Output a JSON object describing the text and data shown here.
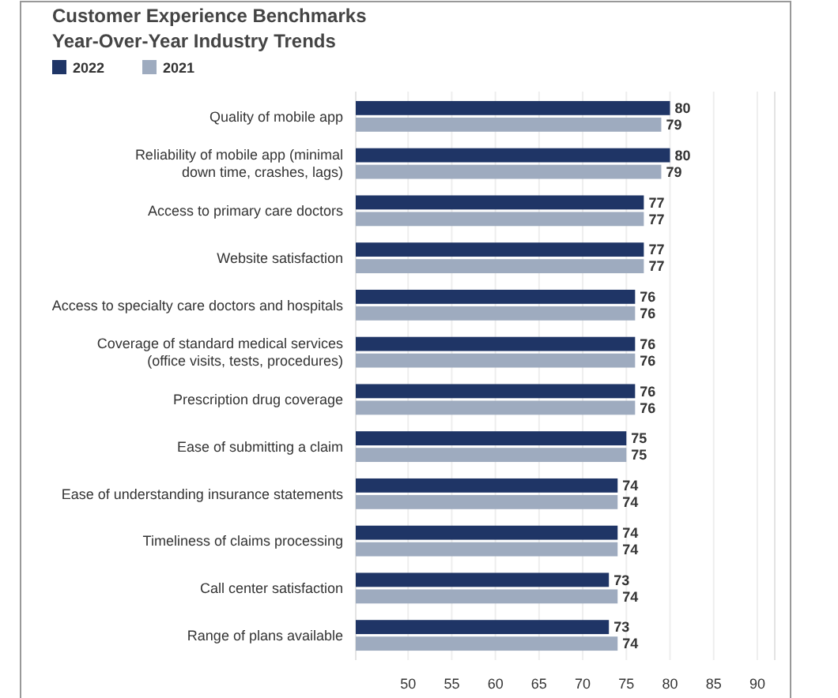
{
  "chart_data": {
    "type": "bar",
    "orientation": "horizontal",
    "title": "Customer Experience Benchmarks",
    "subtitle": "Year-Over-Year Industry Trends",
    "categories": [
      "Quality of mobile app",
      "Reliability of mobile app (minimal\ndown time, crashes, lags)",
      "Access to primary care doctors",
      "Website satisfaction",
      "Access to specialty care doctors and hospitals",
      "Coverage of standard medical services\n(office visits, tests, procedures)",
      "Prescription drug coverage",
      "Ease of submitting a claim",
      "Ease of understanding insurance statements",
      "Timeliness of claims processing",
      "Call center satisfaction",
      "Range of plans available"
    ],
    "series": [
      {
        "name": "2022",
        "color": "#1f3566",
        "values": [
          80,
          80,
          77,
          77,
          76,
          76,
          76,
          75,
          74,
          74,
          73,
          73
        ]
      },
      {
        "name": "2021",
        "color": "#9eabbf",
        "values": [
          79,
          79,
          77,
          77,
          76,
          76,
          76,
          75,
          74,
          74,
          74,
          74
        ]
      }
    ],
    "xlim": [
      44,
      92
    ],
    "xticks": [
      50,
      55,
      60,
      65,
      70,
      75,
      80,
      85,
      90
    ],
    "grid": "x",
    "legend": "top left",
    "data_labels": true
  }
}
